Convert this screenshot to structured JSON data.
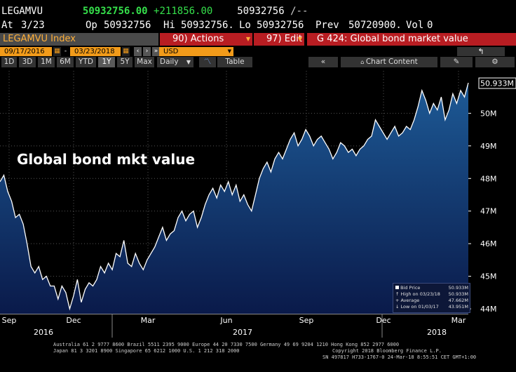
{
  "header": {
    "ticker": "LEGAMVU",
    "last": "50932756.00",
    "change": "+211856.00",
    "last2": "50932756",
    "trend": "/--",
    "at_label": "At",
    "date": "3/23",
    "op_label": "Op",
    "op": "50932756",
    "hi_label": "Hi",
    "hi": "50932756.",
    "lo_label": "Lo",
    "lo": "50932756",
    "prev_label": "Prev",
    "prev": "50720900.",
    "vol_label": "Vol",
    "vol": "0"
  },
  "function_bar": {
    "index": "LEGAMVU Index",
    "actions_num": "90",
    "actions": "Actions",
    "edit_num": "97",
    "edit": "Edit",
    "title": "G 424: Global bond market value"
  },
  "date_bar": {
    "start": "09/17/2016",
    "end": "03/23/2018",
    "currency": "USD"
  },
  "toolbar": {
    "ranges": [
      "1D",
      "3D",
      "1M",
      "6M",
      "YTD",
      "1Y",
      "5Y",
      "Max"
    ],
    "selected_range": "1Y",
    "frequency": "Daily",
    "table": "Table",
    "chart_content": "Chart Content"
  },
  "overlay_title": "Global bond mkt value",
  "last_value_label": "50.933M",
  "legend": {
    "bid_label": "Bid Price",
    "bid_value": "50.933M",
    "high_label": "High on 03/23/18",
    "high_value": "50.933M",
    "avg_label": "+ Average",
    "avg_value": "47.662M",
    "low_label": "Low on 01/03/17",
    "low_value": "43.951M"
  },
  "footer": {
    "line1": "Australia 61 2 9777 8600 Brazil 5511 2395 9000 Europe 44 20 7330 7500 Germany 49 69 9204 1210 Hong Kong 852 2977 6000",
    "line2a": "Japan 81 3 3201 8900        Singapore 65 6212 1000       U.S. 1 212 318 2000",
    "line2b": "Copyright 2018 Bloomberg Finance L.P.",
    "line3": "SN 497817 H733-1767-0 24-Mar-18  8:55:51 CET  GMT+1:00"
  },
  "colors": {
    "area_top": "#1d5a96",
    "area_bottom": "#0a1a4a",
    "line": "#ffffff",
    "accent_red": "#b81d22",
    "accent_orange": "#f29b1a"
  },
  "chart_data": {
    "type": "area",
    "title": "Global bond mkt value",
    "ylim": [
      43.85,
      51.3
    ],
    "yticks": [
      "44M",
      "45M",
      "46M",
      "47M",
      "48M",
      "49M",
      "50M"
    ],
    "ytick_values": [
      44,
      45,
      46,
      47,
      48,
      49,
      50
    ],
    "xticks": [
      "Sep",
      "Dec",
      "Mar",
      "Jun",
      "Sep",
      "Dec",
      "Mar"
    ],
    "year_labels": [
      "2016",
      "2017",
      "2018"
    ],
    "x_range": [
      "2016-09-17",
      "2018-03-23"
    ],
    "grid": true,
    "series": [
      {
        "values": [
          47.9,
          48.1,
          47.6,
          47.3,
          46.8,
          46.9,
          46.6,
          46.0,
          45.3,
          45.1,
          45.3,
          44.9,
          45.0,
          44.7,
          44.7,
          44.3,
          44.7,
          44.5,
          44.0,
          44.4,
          44.9,
          44.2,
          44.6,
          44.8,
          44.7,
          44.9,
          45.3,
          45.1,
          45.4,
          45.2,
          45.7,
          45.6,
          46.1,
          45.4,
          45.3,
          45.7,
          45.4,
          45.2,
          45.5,
          45.7,
          45.9,
          46.2,
          46.5,
          46.1,
          46.3,
          46.4,
          46.8,
          47.0,
          46.7,
          46.9,
          47.0,
          46.5,
          46.8,
          47.2,
          47.5,
          47.7,
          47.4,
          47.8,
          47.6,
          47.9,
          47.5,
          47.8,
          47.3,
          47.5,
          47.2,
          47.0,
          47.5,
          48.0,
          48.3,
          48.5,
          48.2,
          48.6,
          48.8,
          48.6,
          48.9,
          49.2,
          49.4,
          49.0,
          49.2,
          49.5,
          49.3,
          49.0,
          49.2,
          49.3,
          49.1,
          48.9,
          48.6,
          48.8,
          49.1,
          49.0,
          48.8,
          48.9,
          48.7,
          48.9,
          49.0,
          49.2,
          49.3,
          49.8,
          49.6,
          49.4,
          49.2,
          49.4,
          49.6,
          49.3,
          49.4,
          49.6,
          49.5,
          49.8,
          50.2,
          50.7,
          50.4,
          50.0,
          50.3,
          50.1,
          50.5,
          49.8,
          50.1,
          50.6,
          50.3,
          50.7,
          50.5,
          50.933
        ]
      }
    ]
  }
}
